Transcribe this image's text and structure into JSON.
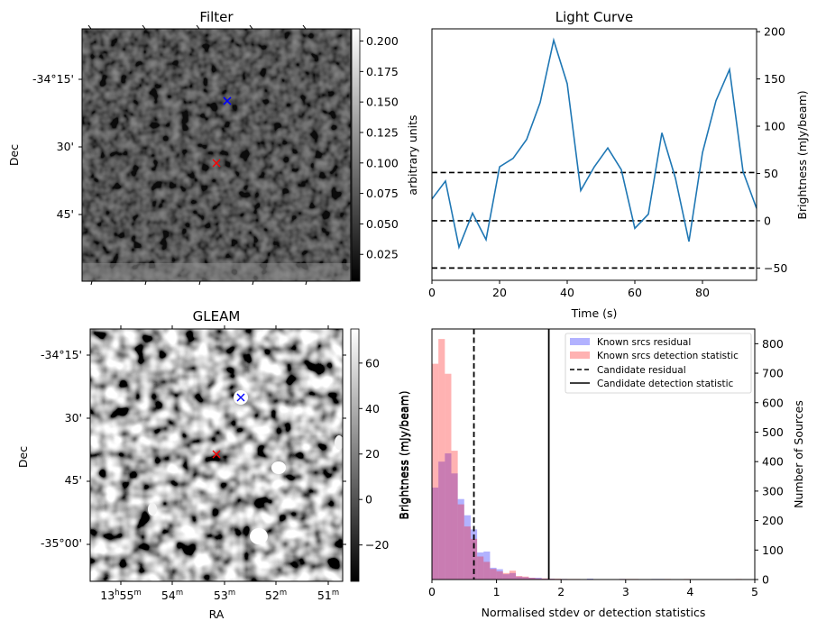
{
  "figure": {
    "panels": [
      "Filter",
      "Light Curve",
      "GLEAM",
      "Histogram"
    ]
  },
  "chart_data": [
    {
      "type": "heatmap",
      "title": "Filter",
      "ylabel": "Dec",
      "xlabel": "",
      "colormap": "gray",
      "colorbar": {
        "label": "arbitrary units",
        "range": [
          0.003,
          0.21
        ],
        "ticks": [
          "0.025",
          "0.050",
          "0.075",
          "0.100",
          "0.125",
          "0.150",
          "0.175",
          "0.200"
        ],
        "tick_values": [
          0.025,
          0.05,
          0.075,
          0.1,
          0.125,
          0.15,
          0.175,
          0.2
        ]
      },
      "ytick_labels": [
        "-34°15'",
        "30'",
        "45'"
      ],
      "markers": [
        {
          "name": "known-source",
          "symbol": "x",
          "color": "#0000ff"
        },
        {
          "name": "candidate",
          "symbol": "x",
          "color": "#ff0000"
        }
      ]
    },
    {
      "type": "line",
      "title": "Light Curve",
      "xlabel": "Time (s)",
      "ylabel": "Brightness (mJy/beam)",
      "xlim": [
        0,
        96
      ],
      "ylim": [
        -63,
        203
      ],
      "xticks": [
        0,
        20,
        40,
        60,
        80
      ],
      "yticks": [
        -50,
        0,
        50,
        100,
        150,
        200
      ],
      "ytick_labels": [
        "−50",
        "0",
        "50",
        "100",
        "150",
        "200"
      ],
      "left_axis_label": "arbitrary units",
      "series": [
        {
          "name": "light-curve",
          "color": "#1f77b4",
          "x": [
            0,
            4,
            8,
            12,
            16,
            20,
            24,
            28,
            32,
            36,
            40,
            44,
            48,
            52,
            56,
            60,
            64,
            68,
            72,
            76,
            80,
            84,
            88,
            92,
            96
          ],
          "y": [
            23,
            42,
            -28,
            8,
            -20,
            57,
            66,
            86,
            125,
            191,
            145,
            32,
            57,
            77,
            54,
            -8,
            7,
            93,
            45,
            -22,
            72,
            127,
            160,
            52,
            13
          ]
        }
      ],
      "hlines": [
        {
          "y": 51,
          "style": "dashed",
          "color": "#000000"
        },
        {
          "y": 0,
          "style": "dashed",
          "color": "#000000"
        },
        {
          "y": -50,
          "style": "dashed",
          "color": "#000000"
        }
      ]
    },
    {
      "type": "heatmap",
      "title": "GLEAM",
      "xlabel": "RA",
      "ylabel": "Dec",
      "colormap": "gray",
      "colorbar": {
        "label": "Brightness (mJy/beam)",
        "range": [
          -36,
          75
        ],
        "ticks": [
          "−20",
          "0",
          "20",
          "40",
          "60"
        ],
        "tick_values": [
          -20,
          0,
          20,
          40,
          60
        ]
      },
      "xtick_labels": [
        {
          "main": "13",
          "sup1": "h",
          "mid": "55",
          "sup2": "m"
        },
        {
          "main": "54",
          "sup2": "m"
        },
        {
          "main": "53",
          "sup2": "m"
        },
        {
          "main": "52",
          "sup2": "m"
        },
        {
          "main": "51",
          "sup2": "m"
        }
      ],
      "ytick_labels": [
        "-34°15'",
        "30'",
        "45'",
        "-35°00'"
      ],
      "markers": [
        {
          "name": "known-source",
          "symbol": "x",
          "color": "#0000ff"
        },
        {
          "name": "candidate",
          "symbol": "x",
          "color": "#ff0000"
        }
      ]
    },
    {
      "type": "bar",
      "subtype": "histogram",
      "xlabel": "Normalised stdev or detection statistics",
      "ylabel": "Number of Sources",
      "left_axis_label": "Brightness (mJy/beam)",
      "xlim": [
        0,
        5
      ],
      "ylim": [
        0,
        850
      ],
      "xticks": [
        0,
        1,
        2,
        3,
        4,
        5
      ],
      "yticks": [
        0,
        100,
        200,
        300,
        400,
        500,
        600,
        700,
        800
      ],
      "bin_width": 0.1,
      "series": [
        {
          "name": "Known srcs residual",
          "color": "#0000ff",
          "alpha": 0.3,
          "bin_starts": [
            0,
            0.1,
            0.2,
            0.3,
            0.4,
            0.5,
            0.6,
            0.7,
            0.8,
            0.9,
            1.0,
            1.1,
            1.2,
            1.3,
            1.4,
            1.5,
            1.6,
            1.7,
            1.8,
            1.9,
            2.0,
            2.4,
            2.9,
            3.4,
            3.5
          ],
          "values": [
            312,
            400,
            428,
            360,
            273,
            218,
            170,
            92,
            95,
            40,
            35,
            18,
            22,
            10,
            8,
            6,
            6,
            3,
            3,
            2,
            2,
            3,
            2,
            2,
            2
          ]
        },
        {
          "name": "Known srcs detection statistic",
          "color": "#ff0000",
          "alpha": 0.3,
          "bin_starts": [
            0,
            0.1,
            0.2,
            0.3,
            0.4,
            0.5,
            0.6,
            0.7,
            0.8,
            0.9,
            1.0,
            1.1,
            1.2,
            1.3,
            1.4,
            1.5,
            1.6,
            1.7,
            1.8,
            1.9,
            2.0,
            2.1,
            2.2,
            2.9,
            3.0,
            3.1,
            3.6,
            3.9,
            4.7
          ],
          "values": [
            732,
            816,
            698,
            437,
            255,
            180,
            138,
            78,
            60,
            36,
            28,
            22,
            30,
            12,
            10,
            6,
            4,
            4,
            3,
            3,
            2,
            2,
            2,
            2,
            2,
            2,
            2,
            2,
            2
          ]
        }
      ],
      "vlines": [
        {
          "name": "Candidate residual",
          "x": 0.65,
          "style": "dashed",
          "color": "#000000"
        },
        {
          "name": "Candidate detection statistic",
          "x": 1.81,
          "style": "solid",
          "color": "#000000"
        }
      ],
      "legend": {
        "placement": "top-right",
        "entries": [
          {
            "label": "Known srcs residual",
            "kind": "patch",
            "color": "#0000ff"
          },
          {
            "label": "Known srcs detection statistic",
            "kind": "patch",
            "color": "#ff0000"
          },
          {
            "label": "Candidate residual",
            "kind": "dashed"
          },
          {
            "label": "Candidate detection statistic",
            "kind": "solid"
          }
        ]
      }
    }
  ]
}
